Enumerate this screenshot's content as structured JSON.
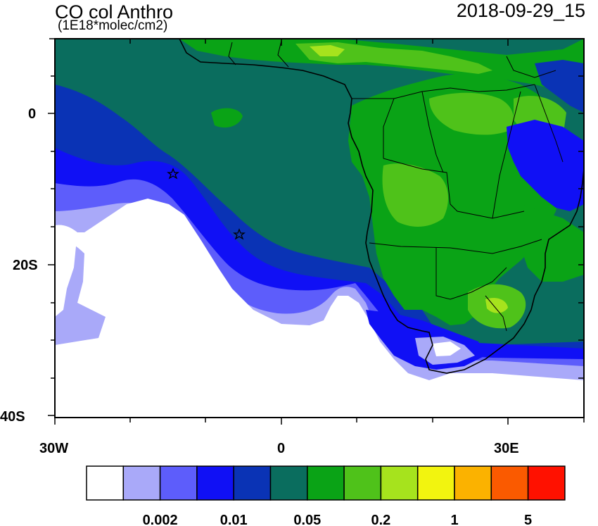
{
  "map": {
    "title": "CO col Anthro",
    "units": "(1E18*molec/cm2)",
    "timestamp": "2018-09-29_15",
    "y_tick_labels": [
      "0",
      "20S",
      "40S"
    ],
    "x_tick_labels": [
      "30W",
      "0",
      "30E"
    ],
    "colorbar": {
      "colors": [
        "#ffffff",
        "#a9a9f9",
        "#5d5dfb",
        "#1010f5",
        "#0a33b5",
        "#0a6d5e",
        "#0aa316",
        "#4fc21a",
        "#a6e31d",
        "#f2f40f",
        "#fbb200",
        "#fa5a00",
        "#ff1100"
      ],
      "labels": [
        "0.002",
        "0.01",
        "0.05",
        "0.2",
        "1",
        "5"
      ]
    },
    "colors": {
      "ocean_base": "#0a6d5e",
      "land_green": "#0aa316",
      "land_lightgreen": "#4fc21a",
      "yellowgreen": "#a6e31d",
      "low_white": "#ffffff",
      "low_lightblue": "#a9a9f9",
      "low_blue": "#5d5dfb",
      "mid_blue": "#1010f5",
      "deep_blue": "#0a33b5",
      "border": "#000000"
    },
    "markers": [
      "star-marker",
      "star-marker"
    ]
  }
}
